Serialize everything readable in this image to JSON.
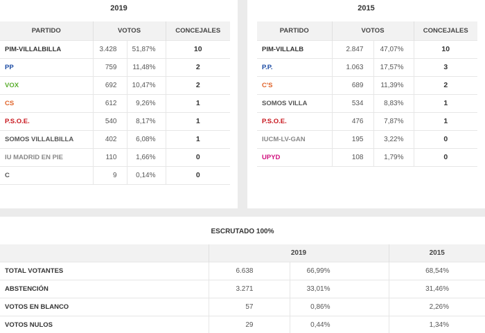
{
  "colors": {
    "black": "#333333",
    "blue": "#1a4aa3",
    "green": "#5aae2e",
    "orange": "#e0642a",
    "red": "#c8161d",
    "gray": "#777777",
    "magenta": "#d1117e"
  },
  "left": {
    "year": "2019",
    "headers": {
      "party": "PARTIDO",
      "votes": "VOTOS",
      "seats": "CONCEJALES"
    },
    "rows": [
      {
        "party": "PIM-VILLALBILLA",
        "votes": "3.428",
        "pct": "51,87%",
        "seats": "10",
        "color": "#333333"
      },
      {
        "party": "PP",
        "votes": "759",
        "pct": "11,48%",
        "seats": "2",
        "color": "#1a4aa3"
      },
      {
        "party": "VOX",
        "votes": "692",
        "pct": "10,47%",
        "seats": "2",
        "color": "#5aae2e"
      },
      {
        "party": "CS",
        "votes": "612",
        "pct": "9,26%",
        "seats": "1",
        "color": "#e0642a"
      },
      {
        "party": "P.S.O.E.",
        "votes": "540",
        "pct": "8,17%",
        "seats": "1",
        "color": "#c8161d"
      },
      {
        "party": "SOMOS VILLALBILLA",
        "votes": "402",
        "pct": "6,08%",
        "seats": "1",
        "color": "#555555"
      },
      {
        "party": "IU MADRID EN PIE",
        "votes": "110",
        "pct": "1,66%",
        "seats": "0",
        "color": "#888888"
      },
      {
        "party": "C",
        "votes": "9",
        "pct": "0,14%",
        "seats": "0",
        "color": "#555555"
      }
    ]
  },
  "right": {
    "year": "2015",
    "headers": {
      "party": "PARTIDO",
      "votes": "VOTOS",
      "seats": "CONCEJALES"
    },
    "rows": [
      {
        "party": "PIM-VILLALB",
        "votes": "2.847",
        "pct": "47,07%",
        "seats": "10",
        "color": "#333333"
      },
      {
        "party": "P.P.",
        "votes": "1.063",
        "pct": "17,57%",
        "seats": "3",
        "color": "#1a4aa3"
      },
      {
        "party": "C'S",
        "votes": "689",
        "pct": "11,39%",
        "seats": "2",
        "color": "#e0642a"
      },
      {
        "party": "SOMOS VILLA",
        "votes": "534",
        "pct": "8,83%",
        "seats": "1",
        "color": "#555555"
      },
      {
        "party": "P.S.O.E.",
        "votes": "476",
        "pct": "7,87%",
        "seats": "1",
        "color": "#c8161d"
      },
      {
        "party": "IUCM-LV-GAN",
        "votes": "195",
        "pct": "3,22%",
        "seats": "0",
        "color": "#888888"
      },
      {
        "party": "UPYD",
        "votes": "108",
        "pct": "1,79%",
        "seats": "0",
        "color": "#d1117e"
      }
    ]
  },
  "escrutado": {
    "title": "ESCRUTADO 100%",
    "year_a": "2019",
    "year_b": "2015",
    "rows": [
      {
        "label": "TOTAL VOTANTES",
        "votes": "6.638",
        "pct_a": "66,99%",
        "pct_b": "68,54%"
      },
      {
        "label": "ABSTENCIÓN",
        "votes": "3.271",
        "pct_a": "33,01%",
        "pct_b": "31,46%"
      },
      {
        "label": "VOTOS EN BLANCO",
        "votes": "57",
        "pct_a": "0,86%",
        "pct_b": "2,26%"
      },
      {
        "label": "VOTOS NULOS",
        "votes": "29",
        "pct_a": "0,44%",
        "pct_b": "1,34%"
      }
    ]
  }
}
